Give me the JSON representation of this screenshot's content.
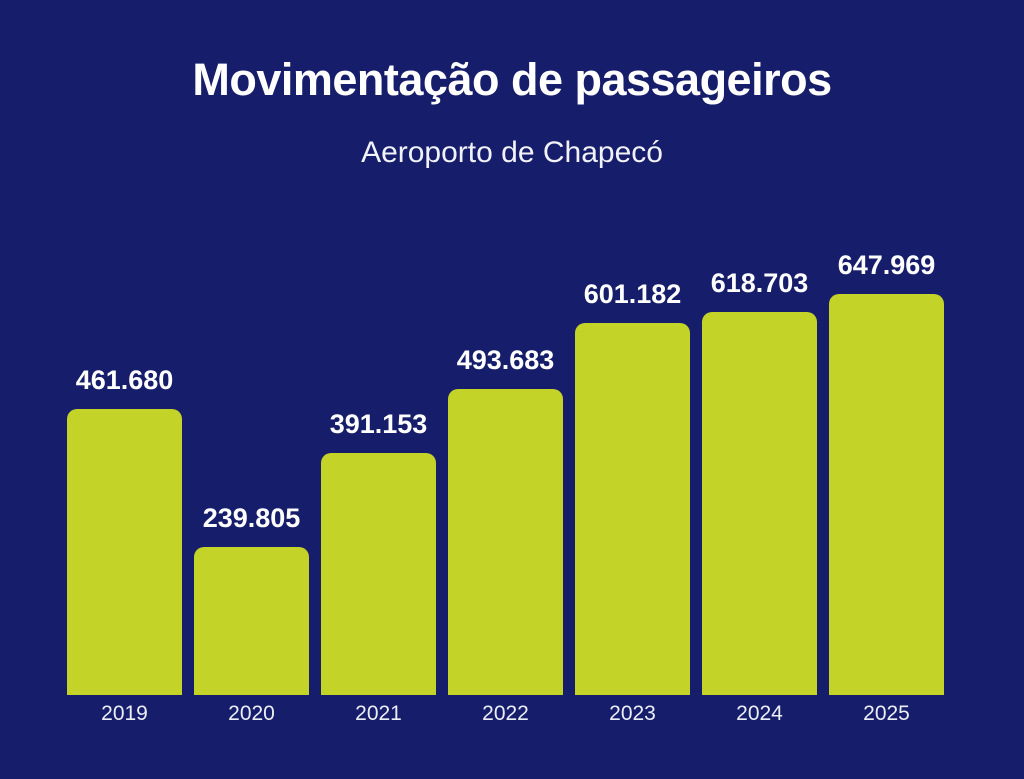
{
  "header": {
    "title": "Movimentação de passageiros",
    "subtitle": "Aeroporto de Chapecó"
  },
  "colors": {
    "background": "#161d6b",
    "bar": "#c3d327",
    "title_text": "#ffffff",
    "subtitle_text": "#f2f3f8",
    "value_text": "#ffffff",
    "year_text": "#eceef5"
  },
  "chart_data": {
    "type": "bar",
    "title": "Movimentação de passageiros",
    "subtitle": "Aeroporto de Chapecó",
    "categories": [
      "2019",
      "2020",
      "2021",
      "2022",
      "2023",
      "2024",
      "2025"
    ],
    "values": [
      461680,
      239805,
      391153,
      493683,
      601182,
      618703,
      647969
    ],
    "value_labels": [
      "461.680",
      "239.805",
      "391.153",
      "493.683",
      "601.182",
      "618.703",
      "647.969"
    ],
    "xlabel": "",
    "ylabel": "",
    "ylim": [
      0,
      700000
    ],
    "grid": false,
    "legend": false,
    "axes_visible": false,
    "bar_color": "#c3d327",
    "value_label_position": "above-bars"
  }
}
